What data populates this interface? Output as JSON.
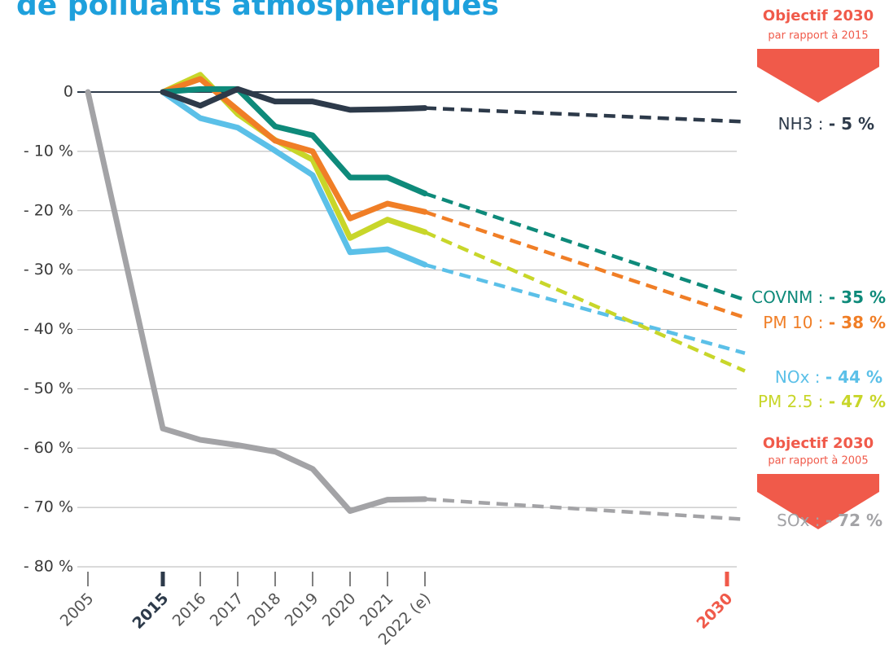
{
  "chart_data": {
    "type": "line",
    "title": "de polluants atmosphériques",
    "categories": [
      "2005",
      "2015",
      "2016",
      "2017",
      "2018",
      "2019",
      "2020",
      "2021",
      "2022 (e)",
      "2030"
    ],
    "ylim": [
      -80,
      0
    ],
    "yticks": [
      0,
      {
        "value": -10,
        "label": "- 10 %"
      },
      {
        "value": -20,
        "label": "- 20 %"
      },
      {
        "value": -30,
        "label": "- 30 %"
      },
      {
        "value": -40,
        "label": "- 40 %"
      },
      {
        "value": -50,
        "label": "- 50 %"
      },
      {
        "value": -60,
        "label": "- 60 %"
      },
      {
        "value": -70,
        "label": "- 70 %"
      },
      {
        "value": -80,
        "label": "- 80 %"
      }
    ],
    "grid": true,
    "label_separator": ":",
    "series": [
      {
        "name": "SOx",
        "color": "#a3a3a6",
        "values": [
          0,
          -56.7,
          -58.6,
          -59.5,
          -60.6,
          -63.5,
          -70.6,
          -68.7,
          -68.6,
          -72
        ],
        "value_labels": [
          null,
          null,
          null,
          null,
          null,
          null,
          null,
          null,
          null,
          "- 72 %"
        ]
      },
      {
        "name": "NOx",
        "color": "#5bc0e8",
        "values": [
          null,
          0,
          -4.4,
          -6,
          -9.9,
          -14,
          -27,
          -26.5,
          -29.1,
          -44
        ],
        "value_labels": [
          null,
          null,
          null,
          null,
          null,
          null,
          null,
          null,
          null,
          "- 44 %"
        ]
      },
      {
        "name": "PM 2.5",
        "color": "#c8d62a",
        "values": [
          null,
          0,
          2.9,
          -3.7,
          -8.1,
          -11.4,
          -24.6,
          -21.5,
          -23.6,
          -47
        ],
        "value_labels": [
          null,
          null,
          null,
          null,
          null,
          null,
          null,
          null,
          null,
          "- 47 %"
        ]
      },
      {
        "name": "PM 10",
        "color": "#f07e26",
        "values": [
          null,
          0,
          2.2,
          -3,
          -8.2,
          -10,
          -21.3,
          -18.8,
          -20.2,
          -38
        ],
        "value_labels": [
          null,
          null,
          null,
          null,
          null,
          null,
          null,
          null,
          null,
          "- 38 %"
        ]
      },
      {
        "name": "COVNM",
        "color": "#0e8a7a",
        "values": [
          null,
          0,
          0.5,
          0.5,
          -5.8,
          -7.3,
          -14.4,
          -14.4,
          -17.1,
          -35
        ],
        "value_labels": [
          null,
          null,
          null,
          null,
          null,
          null,
          null,
          null,
          null,
          "- 35 %"
        ]
      },
      {
        "name": "NH3",
        "color": "#2d3a4a",
        "values": [
          null,
          0,
          -2.3,
          0.5,
          -1.6,
          -1.6,
          -3,
          -2.9,
          -2.7,
          -5
        ],
        "value_labels": [
          null,
          null,
          null,
          null,
          null,
          null,
          null,
          null,
          null,
          "- 5 %"
        ]
      }
    ],
    "annotations": [
      {
        "title": "Objectif 2030",
        "subtitle": "par rapport à 2015"
      },
      {
        "title": "Objectif 2030",
        "subtitle": "par rapport à 2005"
      }
    ]
  }
}
